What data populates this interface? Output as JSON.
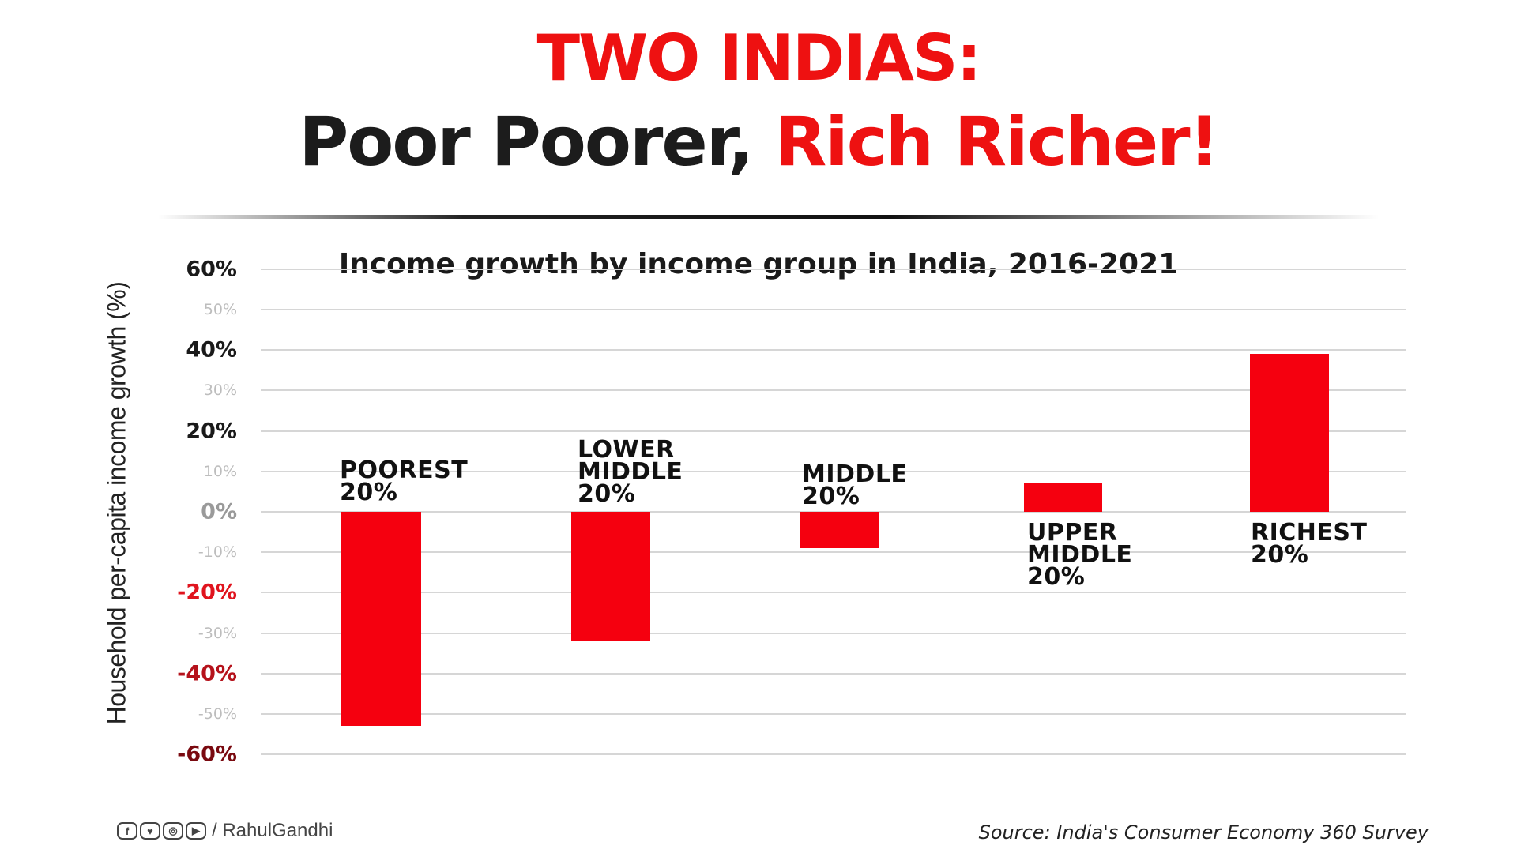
{
  "header": {
    "title_line1": "TWO INDIAS:",
    "title_line2_black": "Poor Poorer, ",
    "title_line2_red": "Rich Richer!",
    "subtitle": "Income growth by income group in India, 2016-2021"
  },
  "colors": {
    "accent_red": "#ee1111",
    "bar_red": "#f5000f",
    "text_dark": "#1c1c1c",
    "gridline": "#d6d6d6"
  },
  "chart_data": {
    "type": "bar",
    "title": "Income growth by income group in India, 2016-2021",
    "xlabel": "",
    "ylabel": "Household per-capita income growth (%)",
    "ylim": [
      -60,
      60
    ],
    "yticks": [
      "60%",
      "50%",
      "40%",
      "30%",
      "20%",
      "10%",
      "0%",
      "-10%",
      "-20%",
      "-30%",
      "-40%",
      "-50%",
      "-60%"
    ],
    "grid": true,
    "legend": null,
    "categories": [
      "POOREST 20%",
      "LOWER MIDDLE 20%",
      "MIDDLE 20%",
      "UPPER MIDDLE 20%",
      "RICHEST 20%"
    ],
    "values": [
      -53,
      -32,
      -9,
      7,
      39
    ]
  },
  "axis": {
    "ylabel": "Household per-capita income growth (%)",
    "ticks": [
      {
        "label": "60%",
        "value": 60,
        "major": true,
        "color": "#1a1a1a"
      },
      {
        "label": "50%",
        "value": 50,
        "major": false
      },
      {
        "label": "40%",
        "value": 40,
        "major": true,
        "color": "#1a1a1a"
      },
      {
        "label": "30%",
        "value": 30,
        "major": false
      },
      {
        "label": "20%",
        "value": 20,
        "major": true,
        "color": "#1a1a1a"
      },
      {
        "label": "10%",
        "value": 10,
        "major": false
      },
      {
        "label": "0%",
        "value": 0,
        "major": true,
        "color": "#9a9a9a"
      },
      {
        "label": "-10%",
        "value": -10,
        "major": false
      },
      {
        "label": "-20%",
        "value": -20,
        "major": true,
        "color": "#e0141e"
      },
      {
        "label": "-30%",
        "value": -30,
        "major": false
      },
      {
        "label": "-40%",
        "value": -40,
        "major": true,
        "color": "#b5121b"
      },
      {
        "label": "-50%",
        "value": -50,
        "major": false
      },
      {
        "label": "-60%",
        "value": -60,
        "major": true,
        "color": "#7a0a10"
      }
    ]
  },
  "groups": [
    {
      "lines": [
        "POOREST",
        "20%"
      ],
      "value": -53
    },
    {
      "lines": [
        "LOWER",
        "MIDDLE",
        "20%"
      ],
      "value": -32
    },
    {
      "lines": [
        "MIDDLE",
        "20%"
      ],
      "value": -9
    },
    {
      "lines": [
        "UPPER",
        "MIDDLE",
        "20%"
      ],
      "value": 7
    },
    {
      "lines": [
        "RICHEST",
        "20%"
      ],
      "value": 39
    }
  ],
  "footer": {
    "social_icons": [
      "facebook-icon",
      "twitter-icon",
      "instagram-icon",
      "youtube-icon"
    ],
    "social_glyphs": [
      "f",
      "♥",
      "◎",
      "▶"
    ],
    "handle": "/ RahulGandhi",
    "source": "Source: India's Consumer Economy 360 Survey"
  }
}
